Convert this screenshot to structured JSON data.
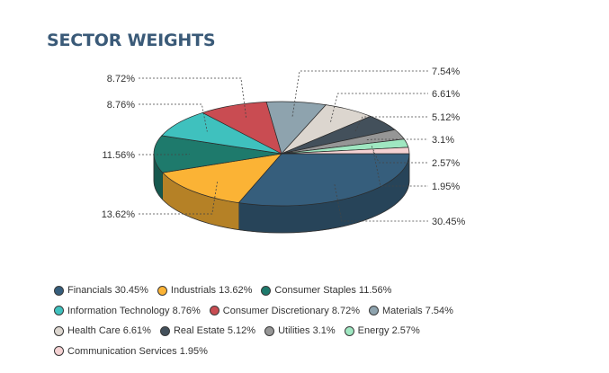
{
  "title": "SECTOR WEIGHTS",
  "chart_data": {
    "type": "pie",
    "style": "3d",
    "title": "SECTOR WEIGHTS",
    "legend_position": "bottom",
    "series": [
      {
        "name": "Financials",
        "value": 30.45,
        "label": "30.45%",
        "legend": "Financials 30.45%",
        "color": "#365e7c"
      },
      {
        "name": "Industrials",
        "value": 13.62,
        "label": "13.62%",
        "legend": "Industrials 13.62%",
        "color": "#fbb335"
      },
      {
        "name": "Consumer Staples",
        "value": 11.56,
        "label": "11.56%",
        "legend": "Consumer Staples 11.56%",
        "color": "#1e7a6c"
      },
      {
        "name": "Information Technology",
        "value": 8.76,
        "label": "8.76%",
        "legend": "Information Technology 8.76%",
        "color": "#3fc1be"
      },
      {
        "name": "Consumer Discretionary",
        "value": 8.72,
        "label": "8.72%",
        "legend": "Consumer Discretionary 8.72%",
        "color": "#c94c52"
      },
      {
        "name": "Materials",
        "value": 7.54,
        "label": "7.54%",
        "legend": "Materials 7.54%",
        "color": "#8ea3ae"
      },
      {
        "name": "Health Care",
        "value": 6.61,
        "label": "6.61%",
        "legend": "Health Care 6.61%",
        "color": "#dcd6cf"
      },
      {
        "name": "Real Estate",
        "value": 5.12,
        "label": "5.12%",
        "legend": "Real Estate 5.12%",
        "color": "#43505b"
      },
      {
        "name": "Utilities",
        "value": 3.1,
        "label": "3.1%",
        "legend": "Utilities 3.1%",
        "color": "#969696"
      },
      {
        "name": "Energy",
        "value": 2.57,
        "label": "2.57%",
        "legend": "Energy 2.57%",
        "color": "#9fe7c1"
      },
      {
        "name": "Communication Services",
        "value": 1.95,
        "label": "1.95%",
        "legend": "Communication Services 1.95%",
        "color": "#f4d1d2"
      }
    ]
  }
}
